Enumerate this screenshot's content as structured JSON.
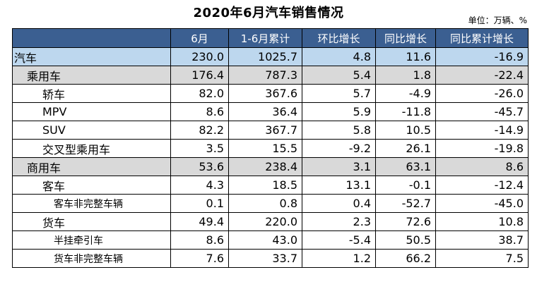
{
  "title": "2020年6月汽车销售情况",
  "unit": "单位：万辆、%",
  "columns": [
    "",
    "6月",
    "1-6月累计",
    "环比增长",
    "同比增长",
    "同比累计增长"
  ],
  "rows": [
    {
      "name": "汽车",
      "level": 0,
      "values": [
        "230.0",
        "1025.7",
        "4.8",
        "11.6",
        "-16.9"
      ]
    },
    {
      "name": "乘用车",
      "level": 1,
      "values": [
        "176.4",
        "787.3",
        "5.4",
        "1.8",
        "-22.4"
      ]
    },
    {
      "name": "轿车",
      "level": 2,
      "values": [
        "82.0",
        "367.6",
        "5.7",
        "-4.9",
        "-26.0"
      ]
    },
    {
      "name": "MPV",
      "level": 2,
      "values": [
        "8.6",
        "36.4",
        "5.9",
        "-11.8",
        "-45.7"
      ]
    },
    {
      "name": "SUV",
      "level": 2,
      "values": [
        "82.2",
        "367.7",
        "5.8",
        "10.5",
        "-14.9"
      ]
    },
    {
      "name": "交叉型乘用车",
      "level": 2,
      "values": [
        "3.5",
        "15.5",
        "-9.2",
        "26.1",
        "-19.8"
      ]
    },
    {
      "name": "商用车",
      "level": 1,
      "values": [
        "53.6",
        "238.4",
        "3.1",
        "63.1",
        "8.6"
      ]
    },
    {
      "name": "客车",
      "level": 2,
      "values": [
        "4.3",
        "18.5",
        "13.1",
        "-0.1",
        "-12.4"
      ]
    },
    {
      "name": "客车非完整车辆",
      "level": 3,
      "values": [
        "0.1",
        "0.8",
        "0.4",
        "-52.7",
        "-45.0"
      ]
    },
    {
      "name": "货车",
      "level": 2,
      "values": [
        "49.4",
        "220.0",
        "2.3",
        "72.6",
        "10.8"
      ]
    },
    {
      "name": "半挂牵引车",
      "level": 3,
      "values": [
        "8.6",
        "43.0",
        "-5.4",
        "50.5",
        "38.7"
      ]
    },
    {
      "name": "货车非完整车辆",
      "level": 3,
      "values": [
        "7.6",
        "33.7",
        "1.2",
        "66.2",
        "7.5"
      ]
    }
  ],
  "colors": {
    "header": "#3b5f91",
    "total_row": "#bdd7ee",
    "category_row": "#d9d9d9"
  }
}
